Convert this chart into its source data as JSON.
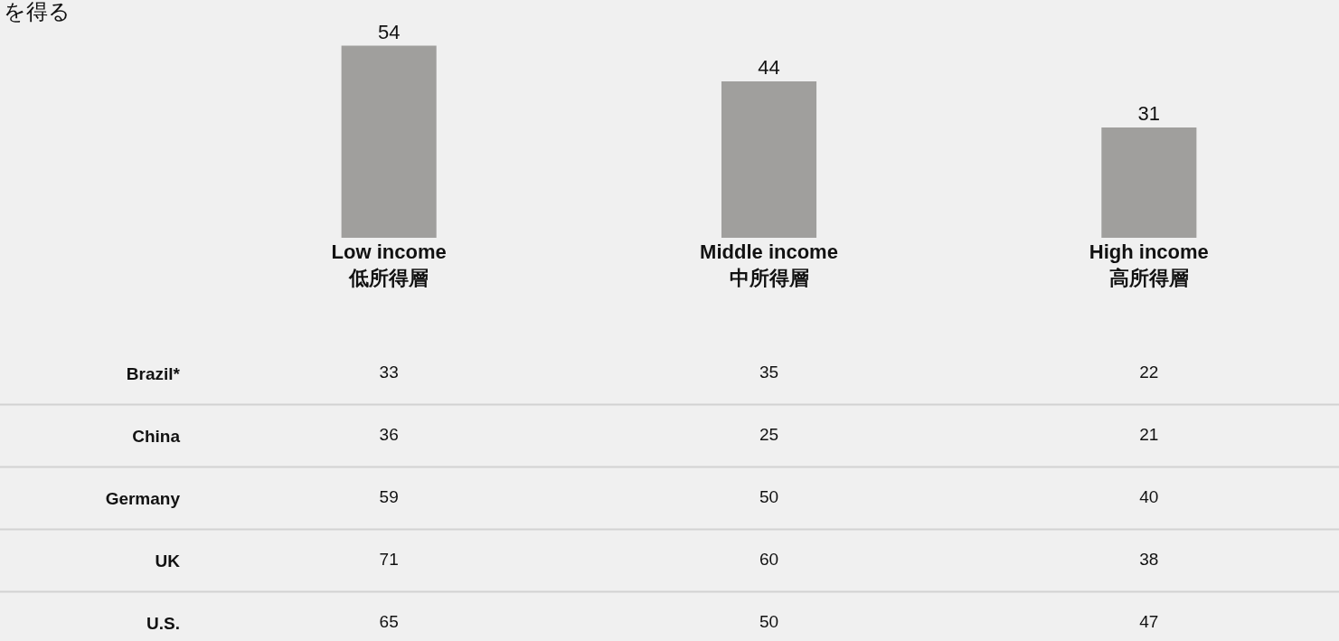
{
  "chart_data": [
    {
      "type": "bar",
      "title": "を得る",
      "categories": [
        "Low income\n低所得層",
        "Middle income\n中所得層",
        "High income\n高所得層"
      ],
      "values": [
        54,
        44,
        31
      ],
      "color": "#a09f9d",
      "data_labels": true,
      "legend": false
    },
    {
      "type": "other",
      "categories": [
        "Brazil*",
        "China",
        "Germany",
        "UK",
        "U.S."
      ],
      "series": [
        {
          "values": [
            33,
            36,
            59,
            71,
            65
          ]
        },
        {
          "values": [
            35,
            25,
            50,
            60,
            50
          ]
        },
        {
          "values": [
            22,
            21,
            40,
            38,
            47
          ]
        }
      ],
      "data_labels": true
    }
  ]
}
